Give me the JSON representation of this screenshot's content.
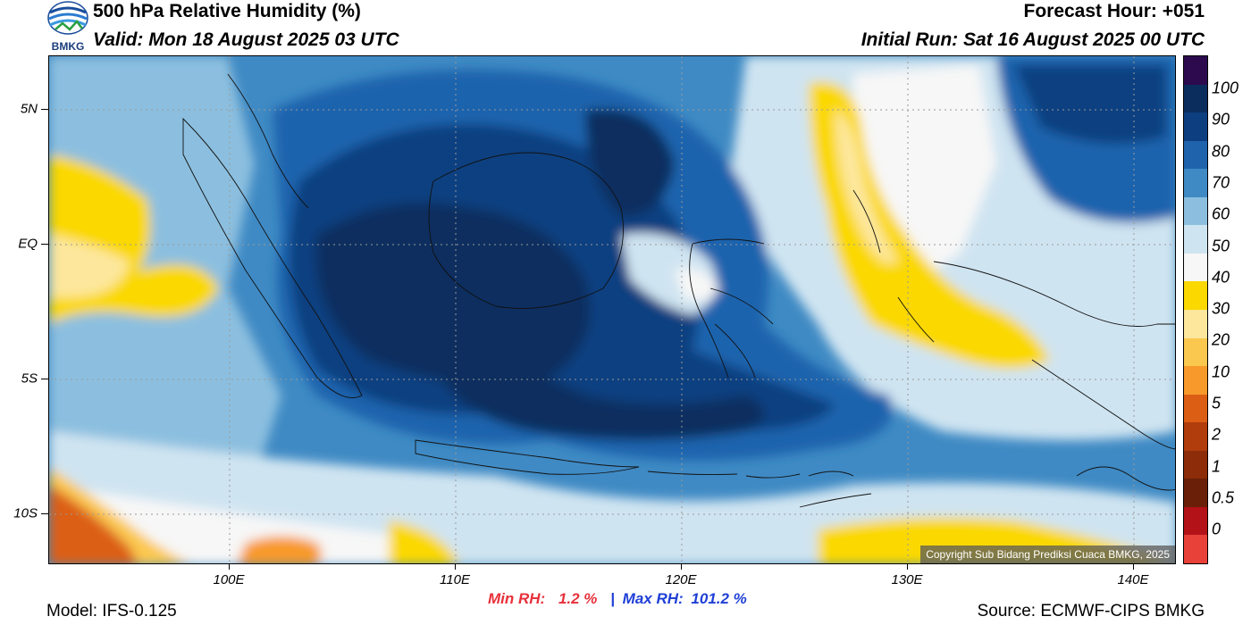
{
  "header": {
    "title": "500 hPa Relative Humidity (%)",
    "valid": "Valid: Mon 18 August 2025 03 UTC",
    "forecast_hour": "Forecast Hour: +051",
    "initial_run": "Initial Run: Sat 16 August 2025 00 UTC",
    "logo_text": "BMKG"
  },
  "map": {
    "lat_labels": [
      "5N",
      "EQ",
      "5S",
      "10S"
    ],
    "lon_labels": [
      "100E",
      "110E",
      "120E",
      "130E",
      "140E"
    ],
    "copyright": "Copyright Sub Bidang Prediksi Cuaca BMKG, 2025"
  },
  "stats": {
    "min_label": "Min RH:",
    "min_value": "1.2 %",
    "separator": "|",
    "max_label": "Max RH:",
    "max_value": "101.2 %"
  },
  "footer": {
    "model": "Model: IFS-0.125",
    "source": "Source: ECMWF-CIPS BMKG"
  },
  "colorbar": {
    "labels": [
      "100",
      "90",
      "80",
      "70",
      "60",
      "50",
      "40",
      "30",
      "20",
      "10",
      "5",
      "2",
      "1",
      "0.5",
      "0"
    ],
    "colors": [
      "#2d0a4e",
      "#0a2d5e",
      "#0d3f80",
      "#1f63ad",
      "#3f8ac4",
      "#8cbfdf",
      "#cfe4f1",
      "#f7f7f7",
      "#fad800",
      "#fde79c",
      "#fbc84f",
      "#f89a2b",
      "#dc5e14",
      "#b13c0c",
      "#8c2c09",
      "#6a2008",
      "#b31218",
      "#e8413a"
    ]
  }
}
